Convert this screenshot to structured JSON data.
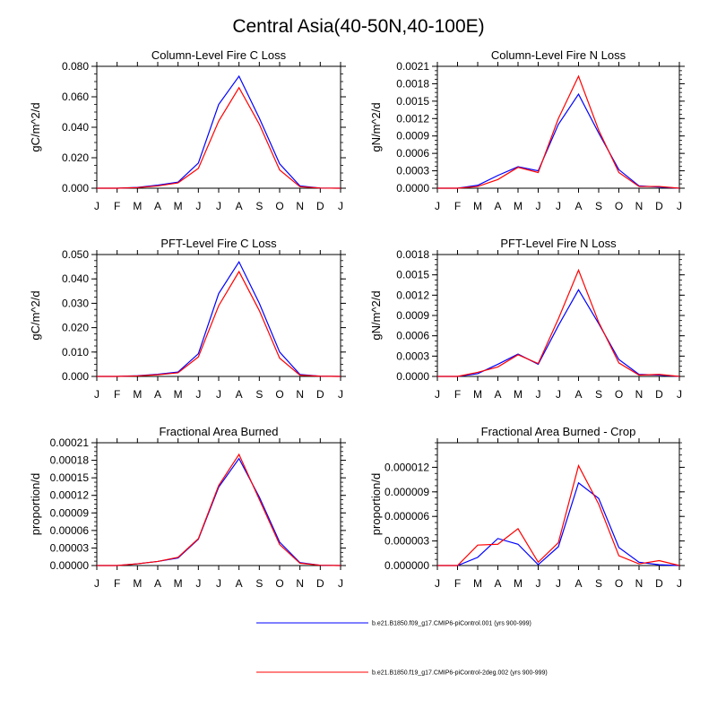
{
  "figure": {
    "title": "Central Asia(40-50N,40-100E)"
  },
  "months": [
    "J",
    "F",
    "M",
    "A",
    "M",
    "J",
    "J",
    "A",
    "S",
    "O",
    "N",
    "D",
    "J"
  ],
  "legend": [
    {
      "name": "b.e21.B1850.f09_g17.CMIP6-piControl.001 (yrs 900-999)",
      "color": "#0000ff"
    },
    {
      "name": "b.e21.B1850.f19_g17.CMIP6-piControl-2deg.002 (yrs 900-999)",
      "color": "#ff0000"
    }
  ],
  "chart_data": [
    {
      "type": "line",
      "title": "Column-Level Fire C Loss",
      "ylabel": "gC/m^2/d",
      "ylim": [
        0,
        0.08
      ],
      "yticks": [
        "0.000",
        "0.020",
        "0.040",
        "0.060",
        "0.080"
      ],
      "ytick_values": [
        0,
        0.02,
        0.04,
        0.06,
        0.08
      ],
      "x": [
        "J",
        "F",
        "M",
        "A",
        "M",
        "J",
        "J",
        "A",
        "S",
        "O",
        "N",
        "D",
        "J"
      ],
      "series": [
        {
          "name": "b.e21.B1850.f09_g17.CMIP6-piControl.001 (yrs 900-999)",
          "color": "#0000ff",
          "values": [
            0.0,
            0.0,
            0.0005,
            0.002,
            0.004,
            0.0165,
            0.055,
            0.0735,
            0.046,
            0.016,
            0.0015,
            0.0001,
            0.0
          ]
        },
        {
          "name": "b.e21.B1850.f19_g17.CMIP6-piControl-2deg.002 (yrs 900-999)",
          "color": "#ff0000",
          "values": [
            0.0,
            0.0,
            0.0004,
            0.0015,
            0.0035,
            0.013,
            0.044,
            0.066,
            0.042,
            0.012,
            0.001,
            0.0001,
            0.0
          ]
        }
      ]
    },
    {
      "type": "line",
      "title": "Column-Level Fire N Loss",
      "ylabel": "gN/m^2/d",
      "ylim": [
        0,
        0.0021
      ],
      "yticks": [
        "0.0000",
        "0.0003",
        "0.0006",
        "0.0009",
        "0.0012",
        "0.0015",
        "0.0018",
        "0.0021"
      ],
      "ytick_values": [
        0,
        0.0003,
        0.0006,
        0.0009,
        0.0012,
        0.0015,
        0.0018,
        0.0021
      ],
      "x": [
        "J",
        "F",
        "M",
        "A",
        "M",
        "J",
        "J",
        "A",
        "S",
        "O",
        "N",
        "D",
        "J"
      ],
      "series": [
        {
          "name": "b.e21.B1850.f09_g17.CMIP6-piControl.001 (yrs 900-999)",
          "color": "#0000ff",
          "values": [
            0.0,
            0.0,
            5e-05,
            0.00022,
            0.00037,
            0.0003,
            0.0011,
            0.00162,
            0.00095,
            0.00032,
            4e-05,
            2e-05,
            0.0
          ]
        },
        {
          "name": "b.e21.B1850.f19_g17.CMIP6-piControl-2deg.002 (yrs 900-999)",
          "color": "#ff0000",
          "values": [
            0.0,
            0.0,
            3e-05,
            0.00015,
            0.00036,
            0.00027,
            0.0012,
            0.00193,
            0.001,
            0.00027,
            3e-05,
            3e-05,
            0.0
          ]
        }
      ]
    },
    {
      "type": "line",
      "title": "PFT-Level Fire C Loss",
      "ylabel": "gC/m^2/d",
      "ylim": [
        0,
        0.05
      ],
      "yticks": [
        "0.000",
        "0.010",
        "0.020",
        "0.030",
        "0.040",
        "0.050"
      ],
      "ytick_values": [
        0,
        0.01,
        0.02,
        0.03,
        0.04,
        0.05
      ],
      "x": [
        "J",
        "F",
        "M",
        "A",
        "M",
        "J",
        "J",
        "A",
        "S",
        "O",
        "N",
        "D",
        "J"
      ],
      "series": [
        {
          "name": "b.e21.B1850.f09_g17.CMIP6-piControl.001 (yrs 900-999)",
          "color": "#0000ff",
          "values": [
            0.0,
            0.0,
            0.0003,
            0.0009,
            0.0018,
            0.0093,
            0.034,
            0.047,
            0.03,
            0.01,
            0.0008,
            0.0001,
            0.0
          ]
        },
        {
          "name": "b.e21.B1850.f19_g17.CMIP6-piControl-2deg.002 (yrs 900-999)",
          "color": "#ff0000",
          "values": [
            0.0,
            0.0,
            0.0002,
            0.0007,
            0.0015,
            0.008,
            0.029,
            0.043,
            0.027,
            0.0075,
            0.0005,
            0.0001,
            0.0
          ]
        }
      ]
    },
    {
      "type": "line",
      "title": "PFT-Level Fire N Loss",
      "ylabel": "gN/m^2/d",
      "ylim": [
        0,
        0.0018
      ],
      "yticks": [
        "0.0000",
        "0.0003",
        "0.0006",
        "0.0009",
        "0.0012",
        "0.0015",
        "0.0018"
      ],
      "ytick_values": [
        0,
        0.0003,
        0.0006,
        0.0009,
        0.0012,
        0.0015,
        0.0018
      ],
      "x": [
        "J",
        "F",
        "M",
        "A",
        "M",
        "J",
        "J",
        "A",
        "S",
        "O",
        "N",
        "D",
        "J"
      ],
      "series": [
        {
          "name": "b.e21.B1850.f09_g17.CMIP6-piControl.001 (yrs 900-999)",
          "color": "#0000ff",
          "values": [
            0.0,
            0.0,
            4e-05,
            0.00018,
            0.00033,
            0.00018,
            0.00075,
            0.00128,
            0.00078,
            0.00025,
            3e-05,
            2e-05,
            0.0
          ]
        },
        {
          "name": "b.e21.B1850.f19_g17.CMIP6-piControl-2deg.002 (yrs 900-999)",
          "color": "#ff0000",
          "values": [
            0.0,
            0.0,
            6e-05,
            0.00014,
            0.00032,
            0.00019,
            0.00085,
            0.00157,
            0.0008,
            0.0002,
            2e-05,
            3e-05,
            0.0
          ]
        }
      ]
    },
    {
      "type": "line",
      "title": "Fractional Area Burned",
      "ylabel": "proportion/d",
      "ylim": [
        0,
        0.00021
      ],
      "yticks": [
        "0.00000",
        "0.00003",
        "0.00006",
        "0.00009",
        "0.00012",
        "0.00015",
        "0.00018",
        "0.00021"
      ],
      "ytick_values": [
        0,
        3e-05,
        6e-05,
        9e-05,
        0.00012,
        0.00015,
        0.00018,
        0.00021
      ],
      "x": [
        "J",
        "F",
        "M",
        "A",
        "M",
        "J",
        "J",
        "A",
        "S",
        "O",
        "N",
        "D",
        "J"
      ],
      "series": [
        {
          "name": "b.e21.B1850.f09_g17.CMIP6-piControl.001 (yrs 900-999)",
          "color": "#0000ff",
          "values": [
            0.0,
            0.0,
            3e-06,
            7e-06,
            1.3e-05,
            4.5e-05,
            0.000134,
            0.000183,
            0.000117,
            4e-05,
            5e-06,
            5e-07,
            0.0
          ]
        },
        {
          "name": "b.e21.B1850.f19_g17.CMIP6-piControl-2deg.002 (yrs 900-999)",
          "color": "#ff0000",
          "values": [
            0.0,
            0.0,
            3e-06,
            7e-06,
            1.4e-05,
            4.6e-05,
            0.000137,
            0.00019,
            0.000113,
            3.6e-05,
            4e-06,
            5e-07,
            0.0
          ]
        }
      ]
    },
    {
      "type": "line",
      "title": "Fractional Area Burned - Crop",
      "ylabel": "proportion/d",
      "ylim": [
        0,
        1.5e-05
      ],
      "yticks": [
        "0.000000",
        "0.000003",
        "0.000006",
        "0.000009",
        "0.000012"
      ],
      "ytick_values": [
        0,
        3e-06,
        6e-06,
        9e-06,
        1.2e-05
      ],
      "x": [
        "J",
        "F",
        "M",
        "A",
        "M",
        "J",
        "J",
        "A",
        "S",
        "O",
        "N",
        "D",
        "J"
      ],
      "series": [
        {
          "name": "b.e21.B1850.f09_g17.CMIP6-piControl.001 (yrs 900-999)",
          "color": "#0000ff",
          "values": [
            0.0,
            0.0,
            1e-06,
            3.3e-06,
            2.6e-06,
            1e-07,
            2.3e-06,
            1.01e-05,
            8.2e-06,
            2.2e-06,
            4e-07,
            1e-07,
            0.0
          ]
        },
        {
          "name": "b.e21.B1850.f19_g17.CMIP6-piControl-2deg.002 (yrs 900-999)",
          "color": "#ff0000",
          "values": [
            0.0,
            0.0,
            2.5e-06,
            2.6e-06,
            4.5e-06,
            4e-07,
            2.8e-06,
            1.22e-05,
            7.5e-06,
            1.2e-06,
            2e-07,
            6e-07,
            0.0
          ]
        }
      ]
    }
  ]
}
